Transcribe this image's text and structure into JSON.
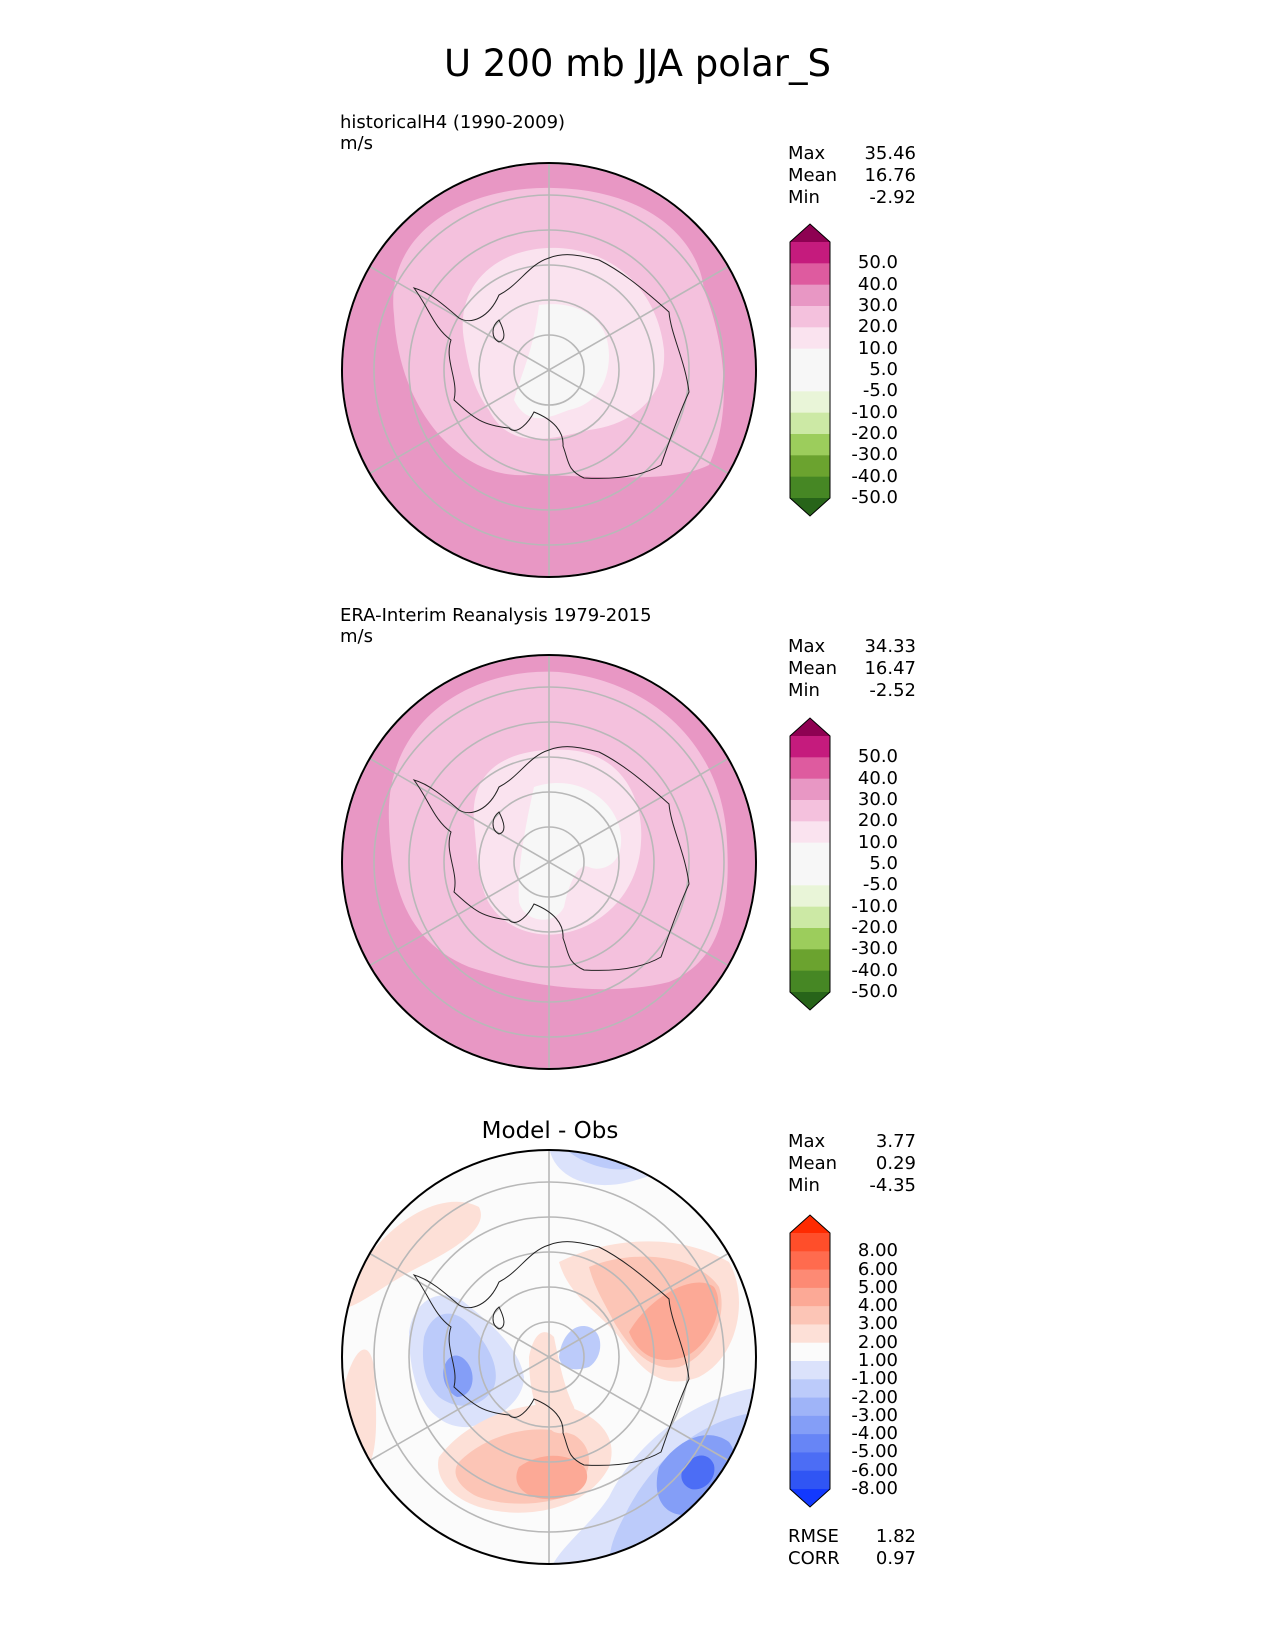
{
  "title": "U 200 mb JJA polar_S",
  "panels": [
    {
      "id": "model",
      "heading": "historicalH4 (1990-2009)",
      "units": "m/s",
      "stats": [
        {
          "label": "Max",
          "value": "35.46"
        },
        {
          "label": "Mean",
          "value": "16.76"
        },
        {
          "label": "Min",
          "value": "-2.92"
        }
      ]
    },
    {
      "id": "obs",
      "heading": "ERA-Interim Reanalysis 1979-2015",
      "units": "m/s",
      "stats": [
        {
          "label": "Max",
          "value": "34.33"
        },
        {
          "label": "Mean",
          "value": "16.47"
        },
        {
          "label": "Min",
          "value": "-2.52"
        }
      ]
    },
    {
      "id": "diff",
      "heading": "Model - Obs",
      "stats": [
        {
          "label": "Max",
          "value": "3.77"
        },
        {
          "label": "Mean",
          "value": "0.29"
        },
        {
          "label": "Min",
          "value": "-4.35"
        }
      ],
      "metrics": [
        {
          "label": "RMSE",
          "value": "1.82"
        },
        {
          "label": "CORR",
          "value": "0.97"
        }
      ]
    }
  ],
  "colorbars": {
    "field": {
      "colors": [
        "#8e0152",
        "#c51b7d",
        "#de5b9f",
        "#e897c4",
        "#f4c1dd",
        "#fae3ef",
        "#f7f7f7",
        "#f7f7f7",
        "#e9f5d8",
        "#cce9a5",
        "#9ccd5c",
        "#6ba32f",
        "#468724",
        "#276419"
      ],
      "labels": [
        "50.0",
        "40.0",
        "30.0",
        "20.0",
        "10.0",
        "5.0",
        "-5.0",
        "-10.0",
        "-20.0",
        "-30.0",
        "-40.0",
        "-50.0"
      ]
    },
    "diff": {
      "colors": [
        "#ff2a00",
        "#ff4e2a",
        "#ff6b4e",
        "#fd8a74",
        "#fca996",
        "#fcc5b6",
        "#fde0d7",
        "#fbfbfb",
        "#dbe2fb",
        "#bccbfa",
        "#9fb4f8",
        "#849ef7",
        "#6785f6",
        "#4c6df5",
        "#3055f4",
        "#1339fe"
      ],
      "labels": [
        "8.00",
        "6.00",
        "5.00",
        "4.00",
        "3.00",
        "2.00",
        "1.00",
        "-1.00",
        "-2.00",
        "-3.00",
        "-4.00",
        "-5.00",
        "-6.00",
        "-8.00"
      ]
    }
  }
}
